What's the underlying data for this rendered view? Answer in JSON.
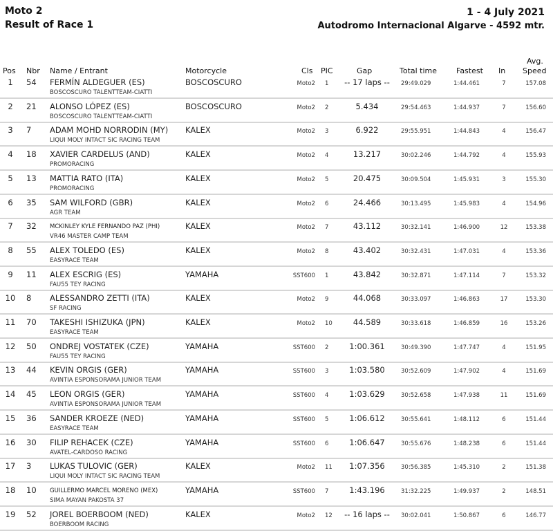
{
  "header": {
    "series": "Moto 2",
    "session": "Result of Race 1",
    "dates": "1 - 4 July 2021",
    "circuit": "Autodromo Internacional Algarve - 4592 mtr."
  },
  "columns": {
    "pos": "Pos",
    "nbr": "Nbr",
    "name": "Name / Entrant",
    "motorcycle": "Motorcycle",
    "cls": "Cls",
    "pic": "PIC",
    "gap": "Gap",
    "total": "Total time",
    "fastest": "Fastest",
    "in": "In",
    "speed_top": "Avg.",
    "speed": "Speed"
  },
  "rows": [
    {
      "pos": "1",
      "nbr": "54",
      "name": "FERMÍN ALDEGUER (ES)",
      "team": "BOSCOSCURO TALENTTEAM-CIATTI",
      "moto": "BOSCOSCURO",
      "cls": "Moto2",
      "pic": "1",
      "gap": "-- 17 laps --",
      "total": "29:49.029",
      "fastest": "1:44.461",
      "in": "7",
      "speed": "157.08"
    },
    {
      "pos": "2",
      "nbr": "21",
      "name": "ALONSO LÓPEZ (ES)",
      "team": "BOSCOSCURO TALENTTEAM-CIATTI",
      "moto": "BOSCOSCURO",
      "cls": "Moto2",
      "pic": "2",
      "gap": "5.434",
      "total": "29:54.463",
      "fastest": "1:44.937",
      "in": "7",
      "speed": "156.60"
    },
    {
      "pos": "3",
      "nbr": "7",
      "name": "ADAM MOHD NORRODIN (MY)",
      "team": "LIQUI MOLY INTACT SIC RACING TEAM",
      "moto": "KALEX",
      "cls": "Moto2",
      "pic": "3",
      "gap": "6.922",
      "total": "29:55.951",
      "fastest": "1:44.843",
      "in": "4",
      "speed": "156.47"
    },
    {
      "pos": "4",
      "nbr": "18",
      "name": "XAVIER CARDELUS (AND)",
      "team": "PROMORACING",
      "moto": "KALEX",
      "cls": "Moto2",
      "pic": "4",
      "gap": "13.217",
      "total": "30:02.246",
      "fastest": "1:44.792",
      "in": "4",
      "speed": "155.93"
    },
    {
      "pos": "5",
      "nbr": "13",
      "name": "MATTIA RATO (ITA)",
      "team": "PROMORACING",
      "moto": "KALEX",
      "cls": "Moto2",
      "pic": "5",
      "gap": "20.475",
      "total": "30:09.504",
      "fastest": "1:45.931",
      "in": "3",
      "speed": "155.30"
    },
    {
      "pos": "6",
      "nbr": "35",
      "name": "SAM WILFORD (GBR)",
      "team": "AGR TEAM",
      "moto": "KALEX",
      "cls": "Moto2",
      "pic": "6",
      "gap": "24.466",
      "total": "30:13.495",
      "fastest": "1:45.983",
      "in": "4",
      "speed": "154.96"
    },
    {
      "pos": "7",
      "nbr": "32",
      "name": "MCKINLEY KYLE FERNANDO PAZ (PHI)",
      "team": "VR46 MASTER CAMP TEAM",
      "moto": "KALEX",
      "cls": "Moto2",
      "pic": "7",
      "gap": "43.112",
      "total": "30:32.141",
      "fastest": "1:46.900",
      "in": "12",
      "speed": "153.38",
      "small": true
    },
    {
      "pos": "8",
      "nbr": "55",
      "name": "ALEX TOLEDO (ES)",
      "team": "EASYRACE TEAM",
      "moto": "KALEX",
      "cls": "Moto2",
      "pic": "8",
      "gap": "43.402",
      "total": "30:32.431",
      "fastest": "1:47.031",
      "in": "4",
      "speed": "153.36"
    },
    {
      "pos": "9",
      "nbr": "11",
      "name": "ALEX ESCRIG (ES)",
      "team": "FAU55 TEY RACING",
      "moto": "YAMAHA",
      "cls": "SST600",
      "pic": "1",
      "gap": "43.842",
      "total": "30:32.871",
      "fastest": "1:47.114",
      "in": "7",
      "speed": "153.32"
    },
    {
      "pos": "10",
      "nbr": "8",
      "name": "ALESSANDRO ZETTI (ITA)",
      "team": "SF RACING",
      "moto": "KALEX",
      "cls": "Moto2",
      "pic": "9",
      "gap": "44.068",
      "total": "30:33.097",
      "fastest": "1:46.863",
      "in": "17",
      "speed": "153.30"
    },
    {
      "pos": "11",
      "nbr": "70",
      "name": "TAKESHI ISHIZUKA (JPN)",
      "team": "EASYRACE TEAM",
      "moto": "KALEX",
      "cls": "Moto2",
      "pic": "10",
      "gap": "44.589",
      "total": "30:33.618",
      "fastest": "1:46.859",
      "in": "16",
      "speed": "153.26"
    },
    {
      "pos": "12",
      "nbr": "50",
      "name": "ONDREJ VOSTATEK (CZE)",
      "team": "FAU55 TEY RACING",
      "moto": "YAMAHA",
      "cls": "SST600",
      "pic": "2",
      "gap": "1:00.361",
      "total": "30:49.390",
      "fastest": "1:47.747",
      "in": "4",
      "speed": "151.95"
    },
    {
      "pos": "13",
      "nbr": "44",
      "name": "KEVIN ORGIS (GER)",
      "team": "AVINTIA ESPONSORAMA JUNIOR TEAM",
      "moto": "YAMAHA",
      "cls": "SST600",
      "pic": "3",
      "gap": "1:03.580",
      "total": "30:52.609",
      "fastest": "1:47.902",
      "in": "4",
      "speed": "151.69"
    },
    {
      "pos": "14",
      "nbr": "45",
      "name": "LEON ORGIS (GER)",
      "team": "AVINTIA ESPONSORAMA JUNIOR TEAM",
      "moto": "YAMAHA",
      "cls": "SST600",
      "pic": "4",
      "gap": "1:03.629",
      "total": "30:52.658",
      "fastest": "1:47.938",
      "in": "11",
      "speed": "151.69"
    },
    {
      "pos": "15",
      "nbr": "36",
      "name": "SANDER KROEZE (NED)",
      "team": "EASYRACE TEAM",
      "moto": "YAMAHA",
      "cls": "SST600",
      "pic": "5",
      "gap": "1:06.612",
      "total": "30:55.641",
      "fastest": "1:48.112",
      "in": "6",
      "speed": "151.44"
    },
    {
      "pos": "16",
      "nbr": "30",
      "name": "FILIP REHACEK (CZE)",
      "team": "AVATEL-CARDOSO RACING",
      "moto": "YAMAHA",
      "cls": "SST600",
      "pic": "6",
      "gap": "1:06.647",
      "total": "30:55.676",
      "fastest": "1:48.238",
      "in": "6",
      "speed": "151.44"
    },
    {
      "pos": "17",
      "nbr": "3",
      "name": "LUKAS TULOVIC (GER)",
      "team": "LIQUI MOLY INTACT SIC RACING TEAM",
      "moto": "KALEX",
      "cls": "Moto2",
      "pic": "11",
      "gap": "1:07.356",
      "total": "30:56.385",
      "fastest": "1:45.310",
      "in": "2",
      "speed": "151.38"
    },
    {
      "pos": "18",
      "nbr": "10",
      "name": "GUILLERMO MARCEL MORENO (MEX)",
      "team": "SIMA MAYAN PAKOSTA 37",
      "moto": "YAMAHA",
      "cls": "SST600",
      "pic": "7",
      "gap": "1:43.196",
      "total": "31:32.225",
      "fastest": "1:49.937",
      "in": "2",
      "speed": "148.51",
      "small": true
    },
    {
      "pos": "19",
      "nbr": "52",
      "name": "JOREL BOERBOOM (NED)",
      "team": "BOERBOOM RACING",
      "moto": "KALEX",
      "cls": "Moto2",
      "pic": "12",
      "gap": "-- 16 laps --",
      "total": "30:02.041",
      "fastest": "1:50.867",
      "in": "6",
      "speed": "146.77"
    }
  ]
}
